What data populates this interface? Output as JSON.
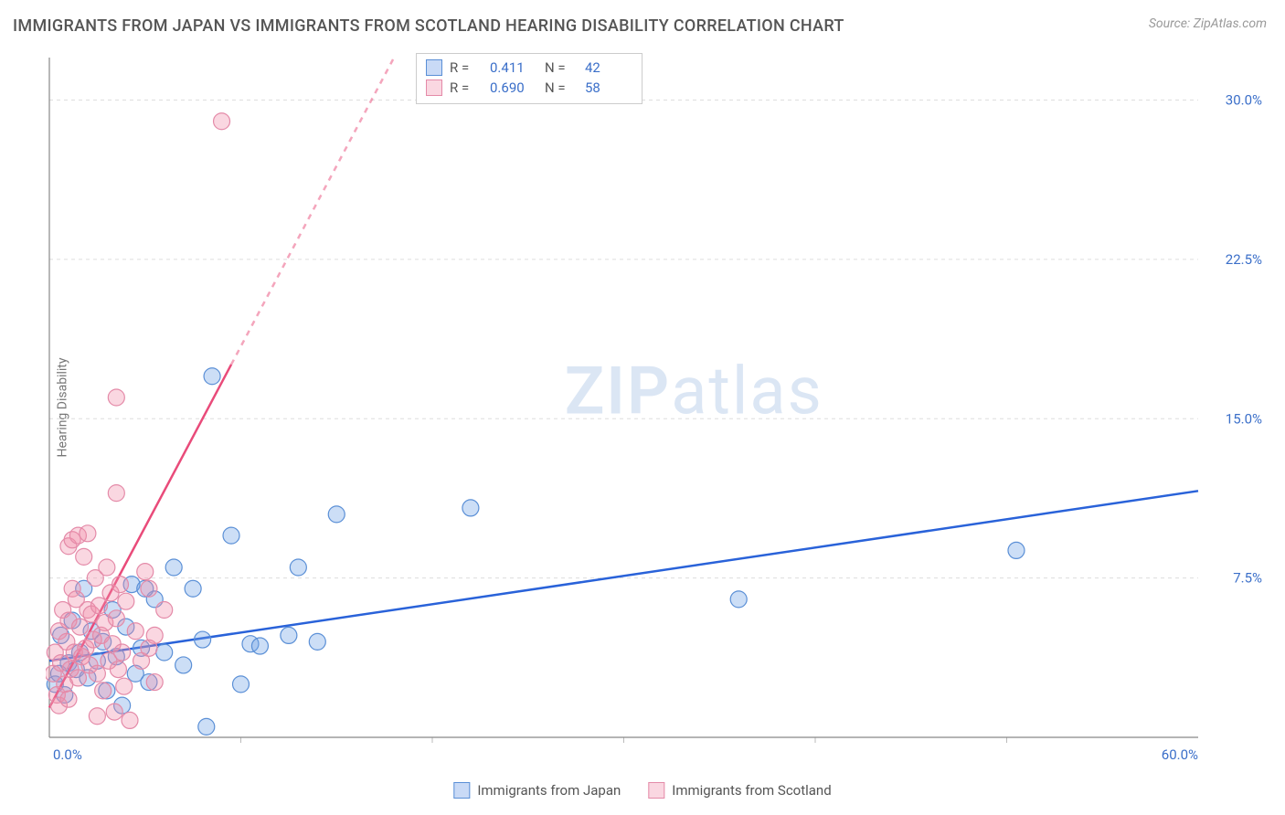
{
  "title": "IMMIGRANTS FROM JAPAN VS IMMIGRANTS FROM SCOTLAND HEARING DISABILITY CORRELATION CHART",
  "source": "Source: ZipAtlas.com",
  "watermark": {
    "zip": "ZIP",
    "atlas": "atlas"
  },
  "y_axis_label": "Hearing Disability",
  "chart": {
    "type": "scatter",
    "xlim": [
      0,
      60
    ],
    "ylim": [
      0,
      32
    ],
    "x_ticks": [
      {
        "value": 0,
        "label": "0.0%"
      },
      {
        "value": 60,
        "label": "60.0%"
      }
    ],
    "y_ticks": [
      {
        "value": 7.5,
        "label": "7.5%"
      },
      {
        "value": 15.0,
        "label": "15.0%"
      },
      {
        "value": 22.5,
        "label": "22.5%"
      },
      {
        "value": 30.0,
        "label": "30.0%"
      }
    ],
    "x_minor_grid": [
      10,
      20,
      30,
      40,
      50
    ],
    "background_color": "#ffffff",
    "grid_color": "#dddddd",
    "marker_radius": 9,
    "marker_stroke_width": 1.2,
    "series": [
      {
        "name": "Immigrants from Japan",
        "color_fill": "rgba(110,160,230,0.35)",
        "color_stroke": "#5a8fd6",
        "trend_color": "#2962d9",
        "trend_width": 2.5,
        "trend_dash_after_x": null,
        "trend_start": {
          "x": 0,
          "y": 3.6
        },
        "trend_end": {
          "x": 60,
          "y": 11.6
        },
        "points": [
          {
            "x": 0.3,
            "y": 2.5
          },
          {
            "x": 0.5,
            "y": 3.0
          },
          {
            "x": 0.6,
            "y": 4.8
          },
          {
            "x": 0.8,
            "y": 2.0
          },
          {
            "x": 1.0,
            "y": 3.5
          },
          {
            "x": 1.2,
            "y": 5.5
          },
          {
            "x": 1.4,
            "y": 3.2
          },
          {
            "x": 1.6,
            "y": 4.0
          },
          {
            "x": 1.8,
            "y": 7.0
          },
          {
            "x": 2.0,
            "y": 2.8
          },
          {
            "x": 2.2,
            "y": 5.0
          },
          {
            "x": 2.5,
            "y": 3.6
          },
          {
            "x": 2.8,
            "y": 4.5
          },
          {
            "x": 3.0,
            "y": 2.2
          },
          {
            "x": 3.3,
            "y": 6.0
          },
          {
            "x": 3.5,
            "y": 3.8
          },
          {
            "x": 3.8,
            "y": 1.5
          },
          {
            "x": 4.0,
            "y": 5.2
          },
          {
            "x": 4.3,
            "y": 7.2
          },
          {
            "x": 4.5,
            "y": 3.0
          },
          {
            "x": 4.8,
            "y": 4.2
          },
          {
            "x": 5.2,
            "y": 2.6
          },
          {
            "x": 5.5,
            "y": 6.5
          },
          {
            "x": 6.0,
            "y": 4.0
          },
          {
            "x": 6.5,
            "y": 8.0
          },
          {
            "x": 7.0,
            "y": 3.4
          },
          {
            "x": 7.5,
            "y": 7.0
          },
          {
            "x": 8.0,
            "y": 4.6
          },
          {
            "x": 8.2,
            "y": 0.5
          },
          {
            "x": 8.5,
            "y": 17.0
          },
          {
            "x": 9.5,
            "y": 9.5
          },
          {
            "x": 10.0,
            "y": 2.5
          },
          {
            "x": 10.5,
            "y": 4.4
          },
          {
            "x": 11.0,
            "y": 4.3
          },
          {
            "x": 12.5,
            "y": 4.8
          },
          {
            "x": 13.0,
            "y": 8.0
          },
          {
            "x": 14.0,
            "y": 4.5
          },
          {
            "x": 15.0,
            "y": 10.5
          },
          {
            "x": 22.0,
            "y": 10.8
          },
          {
            "x": 36.0,
            "y": 6.5
          },
          {
            "x": 50.5,
            "y": 8.8
          },
          {
            "x": 5.0,
            "y": 7.0
          }
        ]
      },
      {
        "name": "Immigrants from Scotland",
        "color_fill": "rgba(240,140,170,0.35)",
        "color_stroke": "#e48aa8",
        "trend_color": "#e94b7a",
        "trend_width": 2.5,
        "trend_dash_after_x": 9.5,
        "trend_start": {
          "x": 0,
          "y": 1.4
        },
        "trend_end": {
          "x": 18,
          "y": 32
        },
        "points": [
          {
            "x": 0.2,
            "y": 3.0
          },
          {
            "x": 0.3,
            "y": 4.0
          },
          {
            "x": 0.4,
            "y": 2.0
          },
          {
            "x": 0.5,
            "y": 5.0
          },
          {
            "x": 0.6,
            "y": 3.5
          },
          {
            "x": 0.7,
            "y": 6.0
          },
          {
            "x": 0.8,
            "y": 2.5
          },
          {
            "x": 0.9,
            "y": 4.5
          },
          {
            "x": 1.0,
            "y": 5.5
          },
          {
            "x": 1.1,
            "y": 3.2
          },
          {
            "x": 1.2,
            "y": 7.0
          },
          {
            "x": 1.3,
            "y": 4.0
          },
          {
            "x": 1.4,
            "y": 6.5
          },
          {
            "x": 1.5,
            "y": 2.8
          },
          {
            "x": 1.6,
            "y": 5.2
          },
          {
            "x": 1.7,
            "y": 3.8
          },
          {
            "x": 1.8,
            "y": 8.5
          },
          {
            "x": 1.9,
            "y": 4.2
          },
          {
            "x": 2.0,
            "y": 6.0
          },
          {
            "x": 2.1,
            "y": 3.4
          },
          {
            "x": 2.2,
            "y": 5.8
          },
          {
            "x": 2.3,
            "y": 4.6
          },
          {
            "x": 2.4,
            "y": 7.5
          },
          {
            "x": 2.5,
            "y": 3.0
          },
          {
            "x": 2.6,
            "y": 6.2
          },
          {
            "x": 2.7,
            "y": 4.8
          },
          {
            "x": 2.8,
            "y": 2.2
          },
          {
            "x": 2.9,
            "y": 5.4
          },
          {
            "x": 3.0,
            "y": 8.0
          },
          {
            "x": 3.1,
            "y": 3.6
          },
          {
            "x": 3.2,
            "y": 6.8
          },
          {
            "x": 3.3,
            "y": 4.4
          },
          {
            "x": 3.4,
            "y": 1.2
          },
          {
            "x": 3.5,
            "y": 5.6
          },
          {
            "x": 3.6,
            "y": 3.2
          },
          {
            "x": 3.7,
            "y": 7.2
          },
          {
            "x": 3.8,
            "y": 4.0
          },
          {
            "x": 3.9,
            "y": 2.4
          },
          {
            "x": 4.0,
            "y": 6.4
          },
          {
            "x": 4.2,
            "y": 0.8
          },
          {
            "x": 4.5,
            "y": 5.0
          },
          {
            "x": 4.8,
            "y": 3.6
          },
          {
            "x": 5.0,
            "y": 7.8
          },
          {
            "x": 5.2,
            "y": 4.2
          },
          {
            "x": 5.5,
            "y": 2.6
          },
          {
            "x": 1.0,
            "y": 9.0
          },
          {
            "x": 1.2,
            "y": 9.3
          },
          {
            "x": 1.5,
            "y": 9.5
          },
          {
            "x": 2.0,
            "y": 9.6
          },
          {
            "x": 3.5,
            "y": 11.5
          },
          {
            "x": 5.2,
            "y": 7.0
          },
          {
            "x": 5.5,
            "y": 4.8
          },
          {
            "x": 6.0,
            "y": 6.0
          },
          {
            "x": 3.5,
            "y": 16.0
          },
          {
            "x": 9.0,
            "y": 29.0
          },
          {
            "x": 0.5,
            "y": 1.5
          },
          {
            "x": 1.0,
            "y": 1.8
          },
          {
            "x": 2.5,
            "y": 1.0
          }
        ]
      }
    ]
  },
  "stats_legend": [
    {
      "series": 0,
      "r_label": "R =",
      "r_value": "0.411",
      "n_label": "N =",
      "n_value": "42"
    },
    {
      "series": 1,
      "r_label": "R =",
      "r_value": "0.690",
      "n_label": "N =",
      "n_value": "58"
    }
  ],
  "bottom_legend": [
    {
      "series": 0,
      "label": "Immigrants from Japan"
    },
    {
      "series": 1,
      "label": "Immigrants from Scotland"
    }
  ]
}
